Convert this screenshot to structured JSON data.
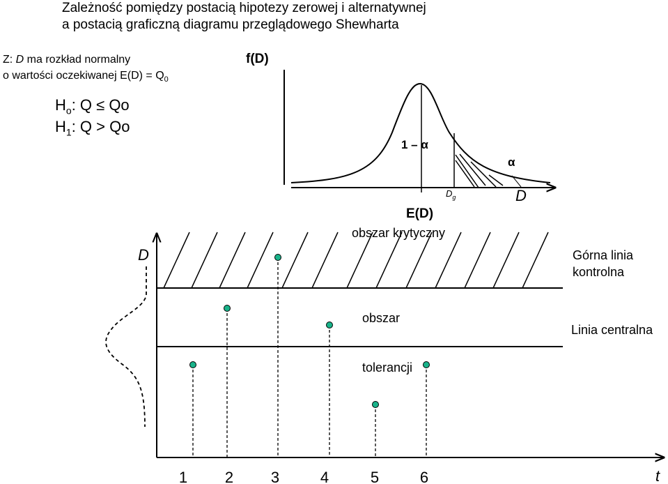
{
  "title": {
    "line1": "Zależność pomiędzy postacią hipotezy zerowej i alternatywnej",
    "line2": "a postacią graficzną diagramu przeglądowego Shewharta"
  },
  "assumption": {
    "z_prefix": "Z: ",
    "z_var": "D",
    "z_rest": " ma rozkład normalny",
    "line2": "o wartości oczekiwanej E(D) = Q",
    "line2_sub": "0"
  },
  "hypotheses": {
    "h0_letter": "H",
    "h0_sub": "o",
    "h0_rest": ": Q ≤ Qo",
    "h1_letter": "H",
    "h1_sub": "1",
    "h1_rest": ": Q > Qo"
  },
  "density_plot": {
    "y_label": "f(D)",
    "one_minus_alpha": "1 – α",
    "alpha": "α",
    "dg_main": "D",
    "dg_sub": "g",
    "x_var": "D",
    "mean_label": "E(D)",
    "critical_region_label": "obszar krytyczny"
  },
  "control_chart": {
    "y_var": "D",
    "upper_line_label_1": "Górna linia",
    "upper_line_label_2": "kontrolna",
    "center_line_label": "Linia centralna",
    "tolerance_label_1": "obszar",
    "tolerance_label_2": "tolerancji",
    "x_var": "t",
    "sample_numbers": [
      "1",
      "2",
      "3",
      "4",
      "5",
      "6"
    ],
    "point_color": "#19b38a"
  }
}
